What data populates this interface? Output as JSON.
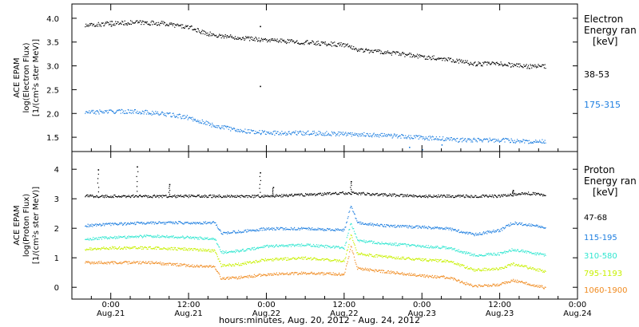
{
  "xaxis": {
    "title": "hours:minutes, Aug. 20, 2012 - Aug. 24, 2012",
    "ticks": [
      {
        "time": "0:00",
        "date": "Aug.21"
      },
      {
        "time": "12:00",
        "date": "Aug.21"
      },
      {
        "time": "0:00",
        "date": "Aug.22"
      },
      {
        "time": "12:00",
        "date": "Aug.22"
      },
      {
        "time": "0:00",
        "date": "Aug.23"
      },
      {
        "time": "12:00",
        "date": "Aug.23"
      },
      {
        "time": "0:00",
        "date": "Aug.24"
      }
    ]
  },
  "chart_data": [
    {
      "type": "scatter",
      "ylabel_lines": [
        "ACE EPAM",
        "log(Electron Flux)",
        "[1/(cm²s ster MeV)]"
      ],
      "legend_title_lines": [
        "Electron",
        "Energy ran",
        "[keV]"
      ],
      "x_range_hours": [
        -6,
        72
      ],
      "ylim": [
        1.2,
        4.3
      ],
      "yticks": [
        "1.5",
        "2.0",
        "2.5",
        "3.0",
        "3.5",
        "4.0"
      ],
      "series": [
        {
          "name": "38-53",
          "color": "#000000",
          "points": [
            [
              -4,
              3.85
            ],
            [
              0,
              3.9
            ],
            [
              4,
              3.92
            ],
            [
              8,
              3.9
            ],
            [
              12,
              3.82
            ],
            [
              14,
              3.72
            ],
            [
              16,
              3.65
            ],
            [
              20,
              3.6
            ],
            [
              24,
              3.55
            ],
            [
              30,
              3.5
            ],
            [
              36,
              3.45
            ],
            [
              38,
              3.35
            ],
            [
              42,
              3.3
            ],
            [
              48,
              3.2
            ],
            [
              52,
              3.15
            ],
            [
              56,
              3.05
            ],
            [
              60,
              3.05
            ],
            [
              64,
              3.0
            ],
            [
              67,
              3.0
            ]
          ],
          "outliers": [
            [
              23,
              3.84
            ],
            [
              23,
              2.58
            ],
            [
              0,
              3.85
            ]
          ]
        },
        {
          "name": "175-315",
          "color": "#1f7fe0",
          "points": [
            [
              -4,
              2.03
            ],
            [
              0,
              2.05
            ],
            [
              4,
              2.05
            ],
            [
              8,
              2.0
            ],
            [
              12,
              1.92
            ],
            [
              16,
              1.75
            ],
            [
              20,
              1.65
            ],
            [
              24,
              1.6
            ],
            [
              30,
              1.6
            ],
            [
              36,
              1.58
            ],
            [
              42,
              1.55
            ],
            [
              48,
              1.5
            ],
            [
              54,
              1.45
            ],
            [
              60,
              1.45
            ],
            [
              64,
              1.42
            ],
            [
              67,
              1.42
            ]
          ],
          "outliers": [
            [
              46,
              1.3
            ],
            [
              48,
              1.25
            ],
            [
              51,
              1.35
            ]
          ]
        }
      ]
    },
    {
      "type": "scatter",
      "ylabel_lines": [
        "ACE EPAM",
        "log(Proton Flux)",
        "[1/(cm²s ster MeV)]"
      ],
      "legend_title_lines": [
        "Proton",
        "Energy ran",
        "[keV]"
      ],
      "x_range_hours": [
        -6,
        72
      ],
      "ylim": [
        -0.4,
        4.6
      ],
      "yticks": [
        "0",
        "1",
        "2",
        "3",
        "4"
      ],
      "series": [
        {
          "name": "47-68",
          "color": "#000000",
          "points": [
            [
              -4,
              3.1
            ],
            [
              0,
              3.1
            ],
            [
              6,
              3.1
            ],
            [
              12,
              3.1
            ],
            [
              18,
              3.1
            ],
            [
              24,
              3.1
            ],
            [
              30,
              3.15
            ],
            [
              36,
              3.2
            ],
            [
              38,
              3.2
            ],
            [
              42,
              3.15
            ],
            [
              48,
              3.1
            ],
            [
              54,
              3.1
            ],
            [
              60,
              3.1
            ],
            [
              64,
              3.2
            ],
            [
              67,
              3.15
            ]
          ],
          "spikes": [
            [
              -2,
              4.0
            ],
            [
              4,
              4.1
            ],
            [
              9,
              3.5
            ],
            [
              23,
              3.9
            ],
            [
              25,
              3.4
            ],
            [
              37,
              3.6
            ],
            [
              62,
              3.3
            ]
          ]
        },
        {
          "name": "115-195",
          "color": "#1f7fe0",
          "points": [
            [
              -4,
              2.1
            ],
            [
              0,
              2.15
            ],
            [
              6,
              2.2
            ],
            [
              12,
              2.2
            ],
            [
              16,
              2.2
            ],
            [
              17,
              1.85
            ],
            [
              20,
              1.9
            ],
            [
              24,
              2.0
            ],
            [
              30,
              2.0
            ],
            [
              36,
              1.95
            ],
            [
              37,
              2.8
            ],
            [
              38,
              2.2
            ],
            [
              42,
              2.1
            ],
            [
              48,
              2.05
            ],
            [
              52,
              2.0
            ],
            [
              56,
              1.8
            ],
            [
              60,
              1.95
            ],
            [
              62,
              2.2
            ],
            [
              67,
              2.05
            ]
          ],
          "spikes": []
        },
        {
          "name": "310-580",
          "color": "#2fe6d0",
          "points": [
            [
              -4,
              1.65
            ],
            [
              0,
              1.7
            ],
            [
              6,
              1.75
            ],
            [
              12,
              1.7
            ],
            [
              16,
              1.65
            ],
            [
              17,
              1.2
            ],
            [
              20,
              1.25
            ],
            [
              24,
              1.4
            ],
            [
              30,
              1.45
            ],
            [
              36,
              1.35
            ],
            [
              37,
              2.2
            ],
            [
              38,
              1.6
            ],
            [
              42,
              1.5
            ],
            [
              48,
              1.4
            ],
            [
              52,
              1.35
            ],
            [
              56,
              1.1
            ],
            [
              60,
              1.15
            ],
            [
              62,
              1.3
            ],
            [
              67,
              1.1
            ]
          ],
          "spikes": []
        },
        {
          "name": "795-1193",
          "color": "#c8f000",
          "points": [
            [
              -4,
              1.3
            ],
            [
              0,
              1.35
            ],
            [
              6,
              1.35
            ],
            [
              12,
              1.3
            ],
            [
              16,
              1.25
            ],
            [
              17,
              0.75
            ],
            [
              20,
              0.8
            ],
            [
              24,
              0.95
            ],
            [
              30,
              1.0
            ],
            [
              36,
              0.9
            ],
            [
              37,
              1.8
            ],
            [
              38,
              1.15
            ],
            [
              42,
              1.05
            ],
            [
              48,
              0.95
            ],
            [
              52,
              0.9
            ],
            [
              56,
              0.6
            ],
            [
              60,
              0.65
            ],
            [
              62,
              0.8
            ],
            [
              67,
              0.55
            ]
          ],
          "spikes": []
        },
        {
          "name": "1060-1900",
          "color": "#f08a1e",
          "points": [
            [
              -4,
              0.85
            ],
            [
              0,
              0.85
            ],
            [
              6,
              0.85
            ],
            [
              12,
              0.75
            ],
            [
              16,
              0.7
            ],
            [
              17,
              0.3
            ],
            [
              20,
              0.35
            ],
            [
              24,
              0.45
            ],
            [
              30,
              0.5
            ],
            [
              36,
              0.45
            ],
            [
              37,
              1.4
            ],
            [
              38,
              0.65
            ],
            [
              42,
              0.55
            ],
            [
              48,
              0.4
            ],
            [
              52,
              0.35
            ],
            [
              56,
              0.05
            ],
            [
              60,
              0.1
            ],
            [
              62,
              0.25
            ],
            [
              67,
              0.0
            ]
          ],
          "spikes": []
        }
      ]
    }
  ]
}
